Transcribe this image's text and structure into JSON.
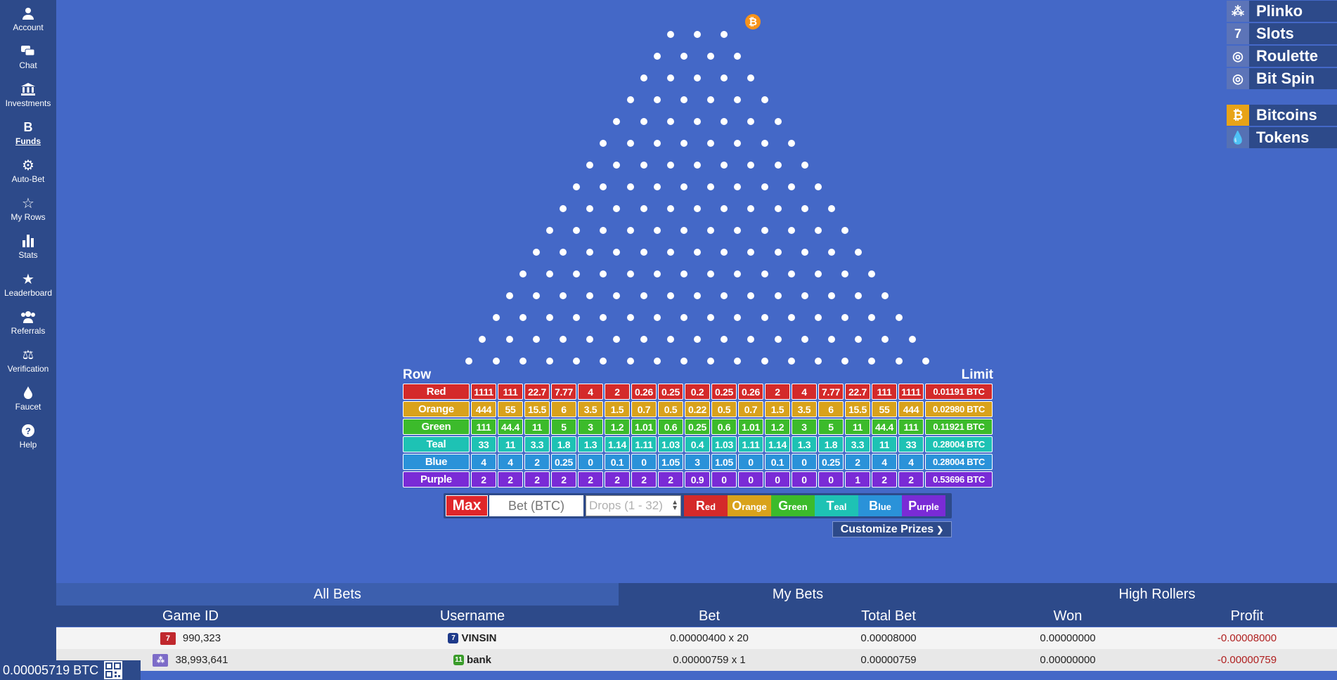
{
  "nav": [
    {
      "label": "Account",
      "icon": "user-icon"
    },
    {
      "label": "Chat",
      "icon": "chat-icon"
    },
    {
      "label": "Investments",
      "icon": "bank-icon"
    },
    {
      "label": "Funds",
      "icon": "bitcoin-icon",
      "active": true
    },
    {
      "label": "Auto-Bet",
      "icon": "gear-icon"
    },
    {
      "label": "My Rows",
      "icon": "star-outline-icon"
    },
    {
      "label": "Stats",
      "icon": "bar-chart-icon"
    },
    {
      "label": "Leaderboard",
      "icon": "star-icon"
    },
    {
      "label": "Referrals",
      "icon": "users-icon"
    },
    {
      "label": "Verification",
      "icon": "scale-icon"
    },
    {
      "label": "Faucet",
      "icon": "drop-icon"
    },
    {
      "label": "Help",
      "icon": "help-icon"
    }
  ],
  "coin_symbol": "₿",
  "prize_table": {
    "row_header": "Row",
    "limit_header": "Limit",
    "rows": [
      {
        "name": "Red",
        "color": "#d42a2a",
        "values": [
          "1111",
          "111",
          "22.7",
          "7.77",
          "4",
          "2",
          "0.26",
          "0.25",
          "0.2",
          "0.25",
          "0.26",
          "2",
          "4",
          "7.77",
          "22.7",
          "111",
          "1111"
        ],
        "limit": "0.01191 BTC"
      },
      {
        "name": "Orange",
        "color": "#d9a21b",
        "values": [
          "444",
          "55",
          "15.5",
          "6",
          "3.5",
          "1.5",
          "0.7",
          "0.5",
          "0.22",
          "0.5",
          "0.7",
          "1.5",
          "3.5",
          "6",
          "15.5",
          "55",
          "444"
        ],
        "limit": "0.02980 BTC"
      },
      {
        "name": "Green",
        "color": "#3cbb2b",
        "values": [
          "111",
          "44.4",
          "11",
          "5",
          "3",
          "1.2",
          "1.01",
          "0.6",
          "0.25",
          "0.6",
          "1.01",
          "1.2",
          "3",
          "5",
          "11",
          "44.4",
          "111"
        ],
        "limit": "0.11921 BTC"
      },
      {
        "name": "Teal",
        "color": "#1ec2b4",
        "values": [
          "33",
          "11",
          "3.3",
          "1.8",
          "1.3",
          "1.14",
          "1.11",
          "1.03",
          "0.4",
          "1.03",
          "1.11",
          "1.14",
          "1.3",
          "1.8",
          "3.3",
          "11",
          "33"
        ],
        "limit": "0.28004 BTC"
      },
      {
        "name": "Blue",
        "color": "#2a92d9",
        "values": [
          "4",
          "4",
          "2",
          "0.25",
          "0",
          "0.1",
          "0",
          "1.05",
          "3",
          "1.05",
          "0",
          "0.1",
          "0",
          "0.25",
          "2",
          "4",
          "4"
        ],
        "limit": "0.28004 BTC"
      },
      {
        "name": "Purple",
        "color": "#7a2bd6",
        "values": [
          "2",
          "2",
          "2",
          "2",
          "2",
          "2",
          "2",
          "2",
          "0.9",
          "0",
          "0",
          "0",
          "0",
          "0",
          "1",
          "2",
          "2"
        ],
        "limit": "0.53696 BTC"
      }
    ]
  },
  "controls": {
    "max_label": "Max",
    "bet_placeholder": "Bet (BTC)",
    "drops_placeholder": "Drops (1 - 32)",
    "color_buttons": [
      {
        "first": "R",
        "rest": "ed",
        "color": "#d42a2a"
      },
      {
        "first": "O",
        "rest": "range",
        "color": "#d9a21b"
      },
      {
        "first": "G",
        "rest": "reen",
        "color": "#3cbb2b"
      },
      {
        "first": "T",
        "rest": "eal",
        "color": "#1ec2b4"
      },
      {
        "first": "B",
        "rest": "lue",
        "color": "#2a92d9"
      },
      {
        "first": "P",
        "rest": "urple",
        "color": "#7a2bd6"
      }
    ],
    "customize_label": "Customize Prizes"
  },
  "games_menu": [
    {
      "label": "Plinko",
      "icon": "plinko-icon",
      "icon_char": "⁂"
    },
    {
      "label": "Slots",
      "icon": "slots-icon",
      "icon_char": "7"
    },
    {
      "label": "Roulette",
      "icon": "roulette-icon",
      "icon_char": "◎"
    },
    {
      "label": "Bit Spin",
      "icon": "bitspin-icon",
      "icon_char": "◎"
    }
  ],
  "currency_menu": [
    {
      "label": "Bitcoins",
      "icon": "bitcoin-icon",
      "icon_char": "₿",
      "color": "#e8a317"
    },
    {
      "label": "Tokens",
      "icon": "drop-icon",
      "icon_char": "💧",
      "color": "#5571b4"
    }
  ],
  "bets": {
    "tabs": [
      "All Bets",
      "My Bets",
      "High Rollers"
    ],
    "active_tab": 0,
    "columns": [
      "Game ID",
      "Username",
      "Bet",
      "Total Bet",
      "Won",
      "Profit"
    ],
    "rows": [
      {
        "game_icon": "7",
        "game_icon_color": "#c0282d",
        "game_id": "990,323",
        "level": "7",
        "level_color": "#1e3a8a",
        "username": "VINSIN",
        "bet": "0.00000400 x 20",
        "total_bet": "0.00008000",
        "won": "0.00000000",
        "profit": "-0.00008000"
      },
      {
        "game_icon": "⁂",
        "game_icon_color": "#7d6cc8",
        "game_id": "38,993,641",
        "level": "11",
        "level_color": "#3a9c2a",
        "username": "bank",
        "bet": "0.00000759 x 1",
        "total_bet": "0.00000759",
        "won": "0.00000000",
        "profit": "-0.00000759"
      }
    ]
  },
  "balance": "0.00005719 BTC"
}
